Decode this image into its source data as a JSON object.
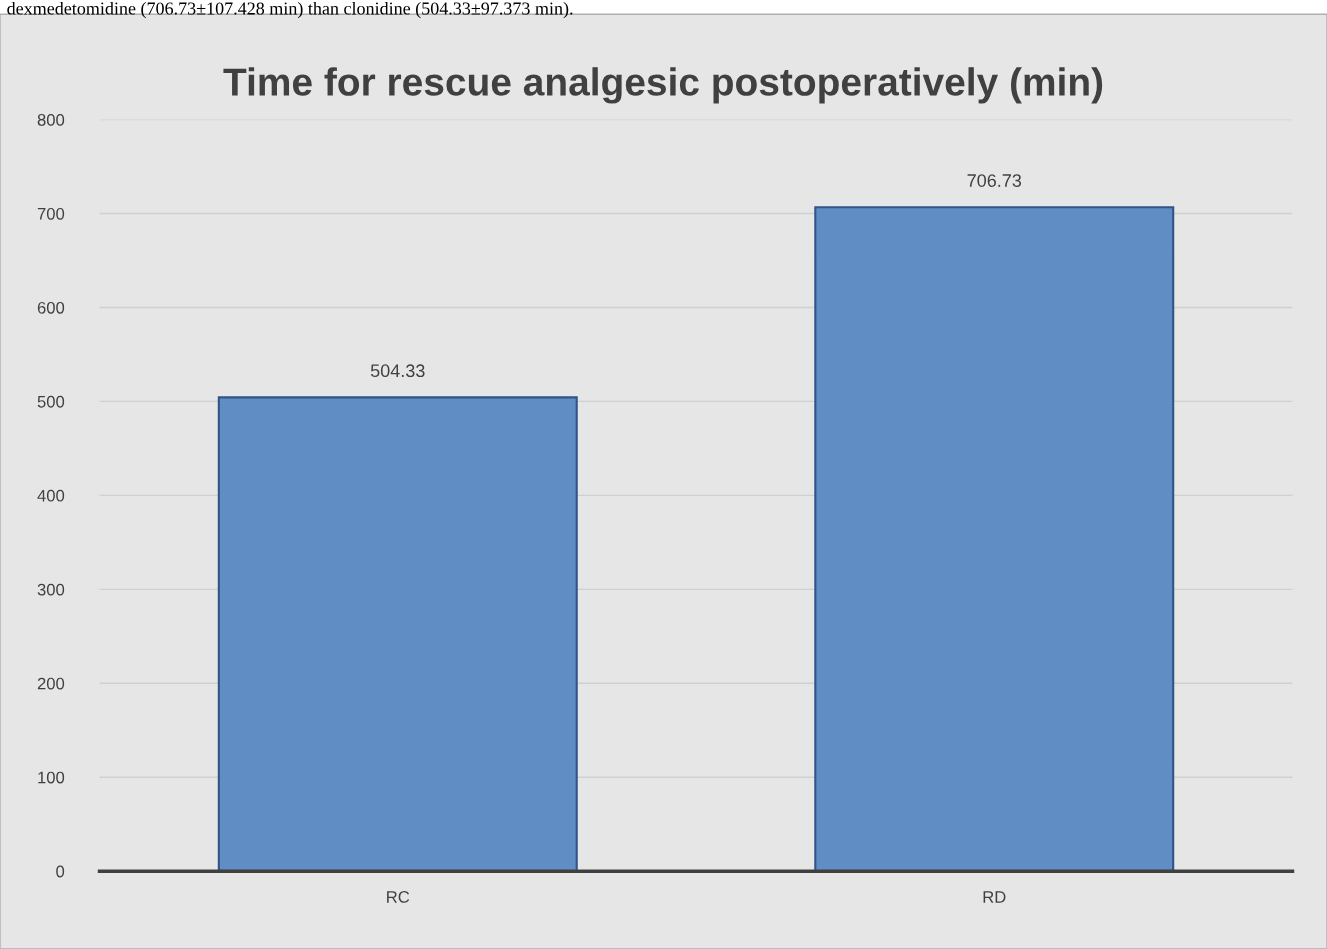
{
  "chart_data": {
    "type": "bar",
    "title": "Time for rescue analgesic postoperatively (min)",
    "annotations": [
      "dexmedetomidine (706.73±107.428 min) than clonidine (504.33±97.373 min)."
    ],
    "categories": [
      "RC",
      "RD"
    ],
    "values": [
      504.33,
      706.73
    ],
    "color": "#5f8dc4",
    "ylim": [
      0,
      800
    ],
    "yticks": [
      0,
      100,
      200,
      300,
      400,
      500,
      600,
      700,
      800
    ],
    "grid": "y",
    "data_labels": true
  }
}
